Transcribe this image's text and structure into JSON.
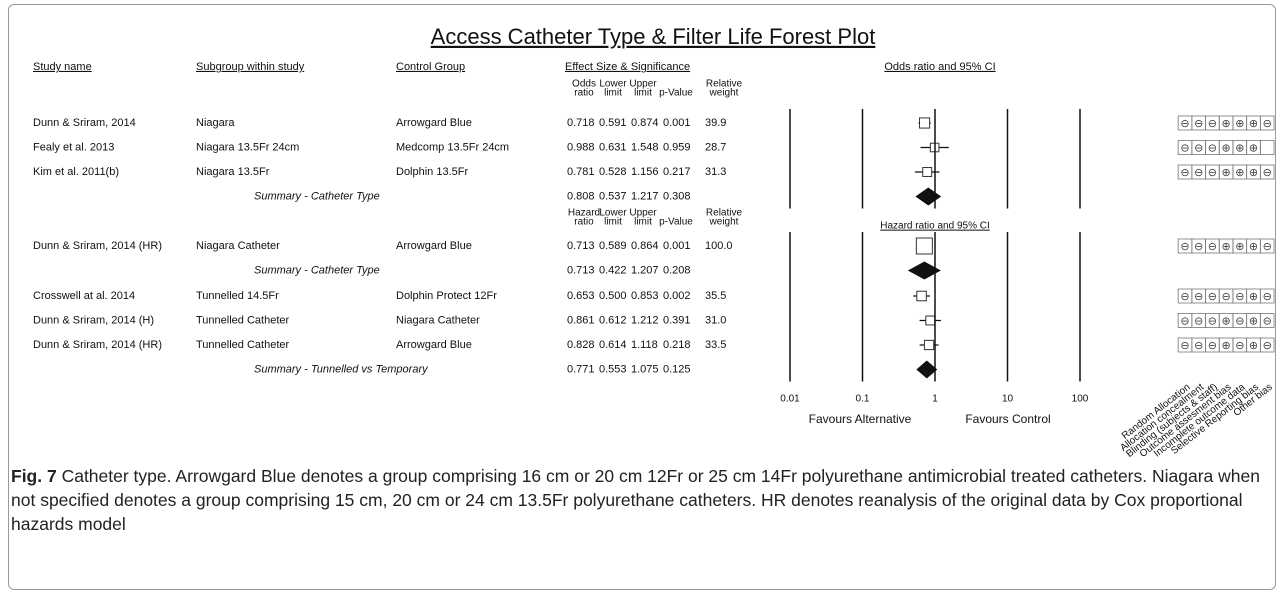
{
  "figure": {
    "title": "Access Catheter Type & Filter Life Forest Plot",
    "columns": [
      "Study name",
      "Subgroup within study",
      "Control Group",
      "Effect Size & Significance",
      "Odds ratio and 95% CI"
    ],
    "blocks": [
      {
        "stat_headers": [
          [
            "Odds",
            "ratio"
          ],
          [
            "Lower",
            "limit"
          ],
          [
            "Upper",
            "limit"
          ],
          [
            "p-Value"
          ],
          [
            "Relative",
            "weight"
          ]
        ],
        "rows": [
          {
            "study": "Dunn & Sriram, 2014",
            "subgroup": "Niagara",
            "control": "Arrowgard Blue",
            "stats": [
              "0.718",
              "0.591",
              "0.874",
              "0.001",
              "39.9"
            ],
            "bias": [
              "⊖",
              "⊖",
              "⊖",
              "⊕",
              "⊕",
              "⊕",
              "⊖"
            ]
          },
          {
            "study": "Fealy et al. 2013",
            "subgroup": "Niagara 13.5Fr 24cm",
            "control": "Medcomp 13.5Fr 24cm",
            "stats": [
              "0.988",
              "0.631",
              "1.548",
              "0.959",
              "28.7"
            ],
            "bias": [
              "⊖",
              "⊖",
              "⊖",
              "⊕",
              "⊕",
              "⊕",
              null
            ]
          },
          {
            "study": "Kim et al. 2011(b)",
            "subgroup": "Niagara 13.5Fr",
            "control": "Dolphin 13.5Fr",
            "stats": [
              "0.781",
              "0.528",
              "1.156",
              "0.217",
              "31.3"
            ],
            "bias": [
              "⊖",
              "⊖",
              "⊖",
              "⊕",
              "⊕",
              "⊕",
              "⊖"
            ]
          }
        ],
        "summary": {
          "label": "Summary - Catheter Type",
          "stats": [
            "0.808",
            "0.537",
            "1.217",
            "0.308"
          ]
        }
      },
      {
        "stat_headers": [
          [
            "Hazard",
            "ratio"
          ],
          [
            "Lower",
            "limit"
          ],
          [
            "Upper",
            "limit"
          ],
          [
            "p-Value"
          ],
          [
            "Relative",
            "weight"
          ]
        ],
        "plot_header": "Hazard ratio and 95% CI",
        "rows": [
          {
            "study": "Dunn & Sriram, 2014 (HR)",
            "subgroup": "Niagara Catheter",
            "control": "Arrowgard Blue",
            "stats": [
              "0.713",
              "0.589",
              "0.864",
              "0.001",
              "100.0"
            ],
            "bias": [
              "⊖",
              "⊖",
              "⊖",
              "⊕",
              "⊕",
              "⊕",
              "⊖"
            ]
          }
        ],
        "summary": {
          "label": "Summary - Catheter Type",
          "stats": [
            "0.713",
            "0.422",
            "1.207",
            "0.208"
          ]
        }
      },
      {
        "rows": [
          {
            "study": "Crosswell at al. 2014",
            "subgroup": "Tunnelled 14.5Fr",
            "control": "Dolphin Protect 12Fr",
            "stats": [
              "0.653",
              "0.500",
              "0.853",
              "0.002",
              "35.5"
            ],
            "bias": [
              "⊖",
              "⊖",
              "⊖",
              "⊖",
              "⊖",
              "⊕",
              "⊖"
            ]
          },
          {
            "study": "Dunn & Sriram, 2014 (H)",
            "subgroup": "Tunnelled Catheter",
            "control": "Niagara Catheter",
            "stats": [
              "0.861",
              "0.612",
              "1.212",
              "0.391",
              "31.0"
            ],
            "bias": [
              "⊖",
              "⊖",
              "⊖",
              "⊕",
              "⊖",
              "⊕",
              "⊖"
            ]
          },
          {
            "study": "Dunn & Sriram, 2014 (HR)",
            "subgroup": "Tunnelled Catheter",
            "control": "Arrowgard Blue",
            "stats": [
              "0.828",
              "0.614",
              "1.118",
              "0.218",
              "33.5"
            ],
            "bias": [
              "⊖",
              "⊖",
              "⊖",
              "⊕",
              "⊖",
              "⊕",
              "⊖"
            ]
          }
        ],
        "summary": {
          "label": "Summary - Tunnelled vs Temporary",
          "stats": [
            "0.771",
            "0.553",
            "1.075",
            "0.125"
          ]
        }
      }
    ],
    "axis": {
      "scale": "log",
      "xlim": [
        0.01,
        100
      ],
      "xticks": [
        0.01,
        0.1,
        1,
        10,
        100
      ],
      "left_label": "Favours Alternative",
      "right_label": "Favours Control"
    },
    "bias_labels": [
      "Random Allocation",
      "Allocation concealment",
      "Blinding (subjects & staff)",
      "Outcome assesment bias",
      "Incomplete outcome data",
      "Selective Reporting bias",
      "Other bias"
    ],
    "caption": {
      "label": "Fig. 7",
      "text": "Catheter type. Arrowgard Blue denotes a group comprising 16 cm or 20 cm 12Fr or 25 cm 14Fr polyurethane antimicrobial treated catheters. Niagara when not specified denotes a group comprising 15 cm, 20 cm or 24 cm 13.5Fr polyurethane catheters. HR denotes reanalysis of the original data by Cox proportional hazards model"
    }
  }
}
